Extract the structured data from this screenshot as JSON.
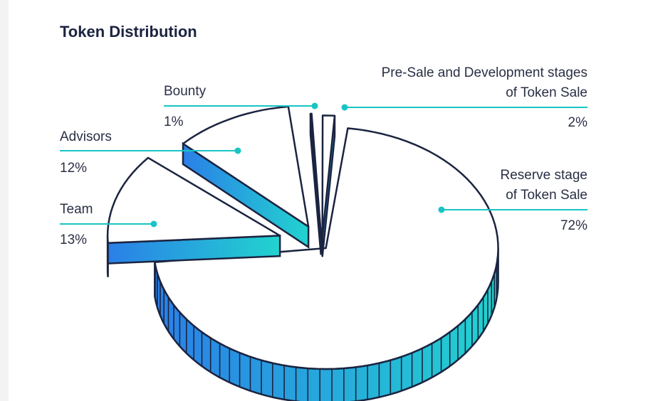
{
  "title": "Token Distribution",
  "colors": {
    "outline": "#1b2440",
    "leader": "#19c4c4",
    "grad_start": "#2a7fe8",
    "grad_end": "#22d3cf",
    "face": "#ffffff"
  },
  "chart_data": {
    "type": "pie",
    "title": "Token Distribution",
    "slices": [
      {
        "label": "Reserve stage\nof Token Sale",
        "value": 72,
        "value_label": "72%"
      },
      {
        "label": "Team",
        "value": 13,
        "value_label": "13%"
      },
      {
        "label": "Advisors",
        "value": 12,
        "value_label": "12%"
      },
      {
        "label": "Bounty",
        "value": 1,
        "value_label": "1%"
      },
      {
        "label": "Pre-Sale and Development stages\nof Token Sale",
        "value": 2,
        "value_label": "2%"
      }
    ],
    "legend": "none"
  }
}
